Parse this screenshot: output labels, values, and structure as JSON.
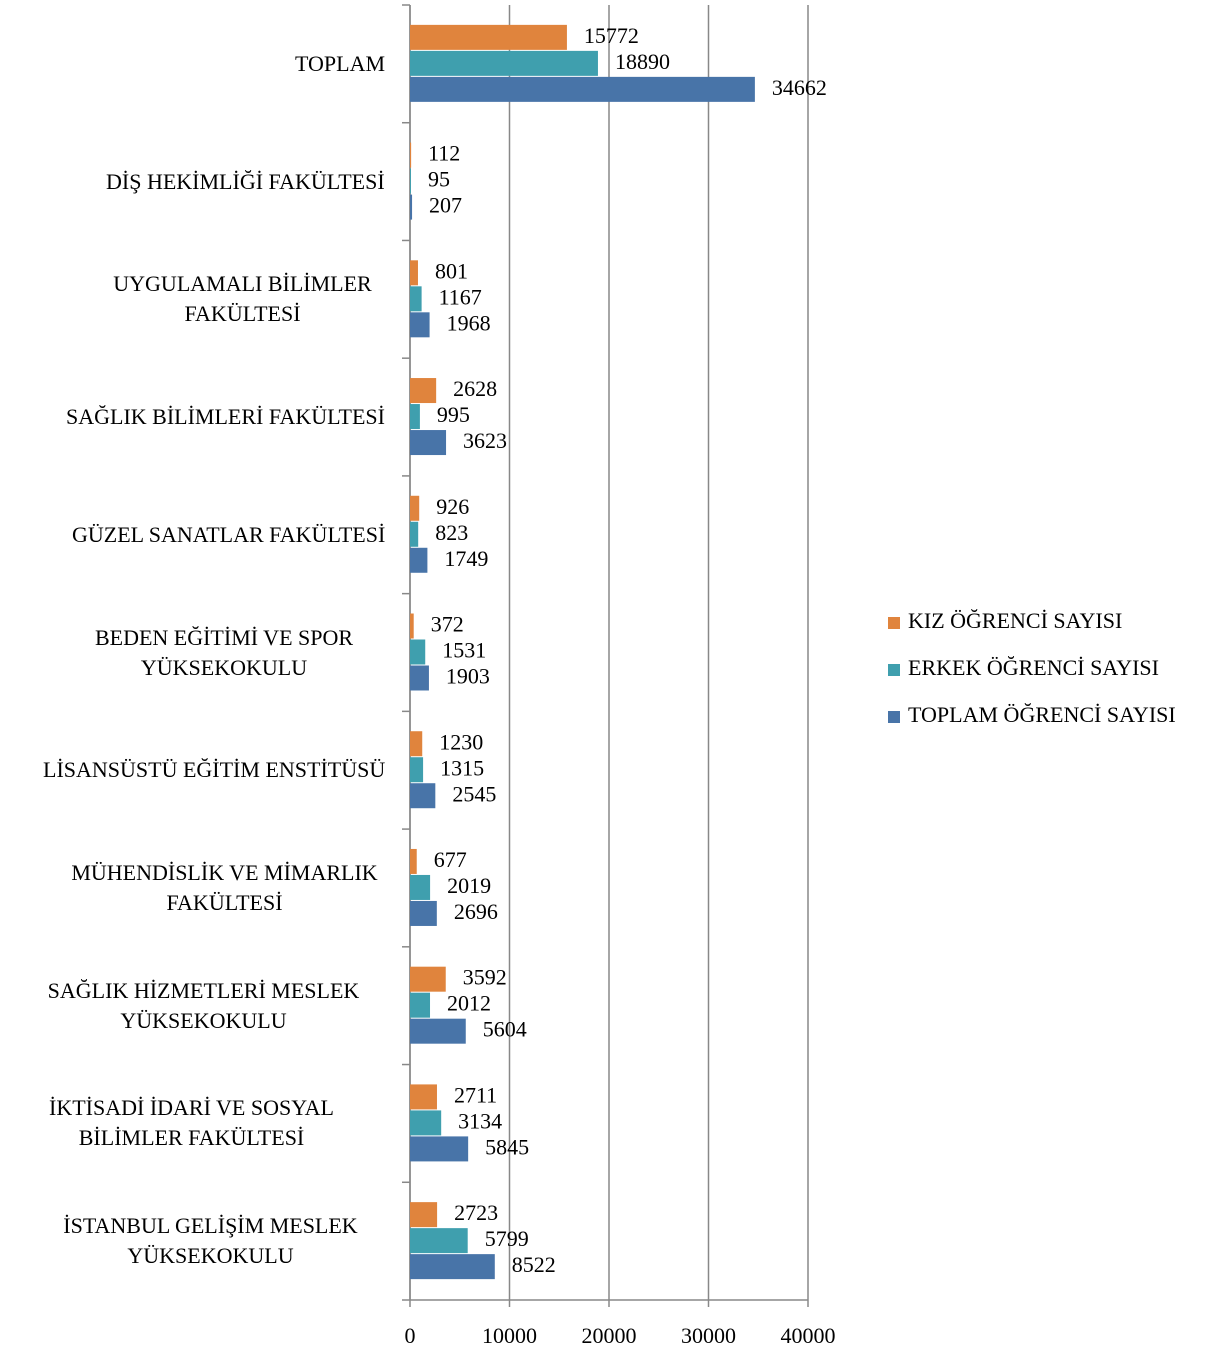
{
  "chart_data": {
    "type": "barh",
    "categories": [
      "TOPLAM",
      "DİŞ HEKİMLİĞİ FAKÜLTESİ",
      "UYGULAMALI BİLİMLER FAKÜLTESİ",
      "SAĞLIK BİLİMLERİ FAKÜLTESİ",
      "GÜZEL SANATLAR FAKÜLTESİ",
      "BEDEN EĞİTİMİ VE SPOR YÜKSEKOKULU",
      "LİSANSÜSTÜ EĞİTİM ENSTİTÜSÜ",
      "MÜHENDİSLİK VE MİMARLIK FAKÜLTESİ",
      "SAĞLIK HİZMETLERİ MESLEK YÜKSEKOKULU",
      "İKTİSADİ İDARİ VE SOSYAL BİLİMLER FAKÜLTESİ",
      "İSTANBUL GELİŞİM MESLEK YÜKSEKOKULU"
    ],
    "series": [
      {
        "name": "KIZ ÖĞRENCİ SAYISI",
        "color": "#e0843d",
        "values": [
          15772,
          112,
          801,
          2628,
          926,
          372,
          1230,
          677,
          3592,
          2711,
          2723
        ]
      },
      {
        "name": "ERKEK ÖĞRENCİ SAYISI",
        "color": "#3f9fae",
        "values": [
          18890,
          95,
          1167,
          995,
          823,
          1531,
          1315,
          2019,
          2012,
          3134,
          5799
        ]
      },
      {
        "name": "TOPLAM ÖĞRENCİ SAYISI",
        "color": "#4874a8",
        "values": [
          34662,
          207,
          1968,
          3623,
          1749,
          1903,
          2545,
          2696,
          5604,
          5845,
          8522
        ]
      }
    ],
    "xlim": [
      0,
      40000
    ],
    "xticks": [
      0,
      10000,
      20000,
      30000,
      40000
    ],
    "grid": true,
    "legend": "right"
  }
}
